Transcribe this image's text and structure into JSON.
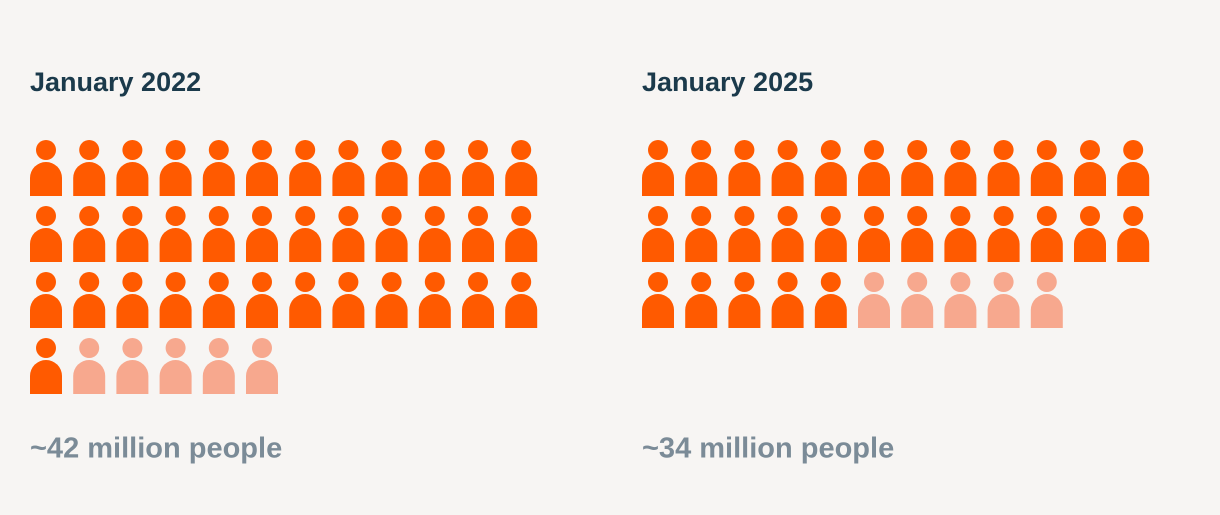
{
  "chart_data": [
    {
      "type": "pictogram",
      "title": "January 2022",
      "label": "~42 million people",
      "counts": [
        37,
        5
      ],
      "colors": [
        "#ff5a00",
        "#f7a88e"
      ]
    },
    {
      "type": "pictogram",
      "title": "January 2025",
      "label": "~34 million people",
      "counts": [
        29,
        5
      ],
      "colors": [
        "#ff5a00",
        "#f7a88e"
      ]
    }
  ]
}
